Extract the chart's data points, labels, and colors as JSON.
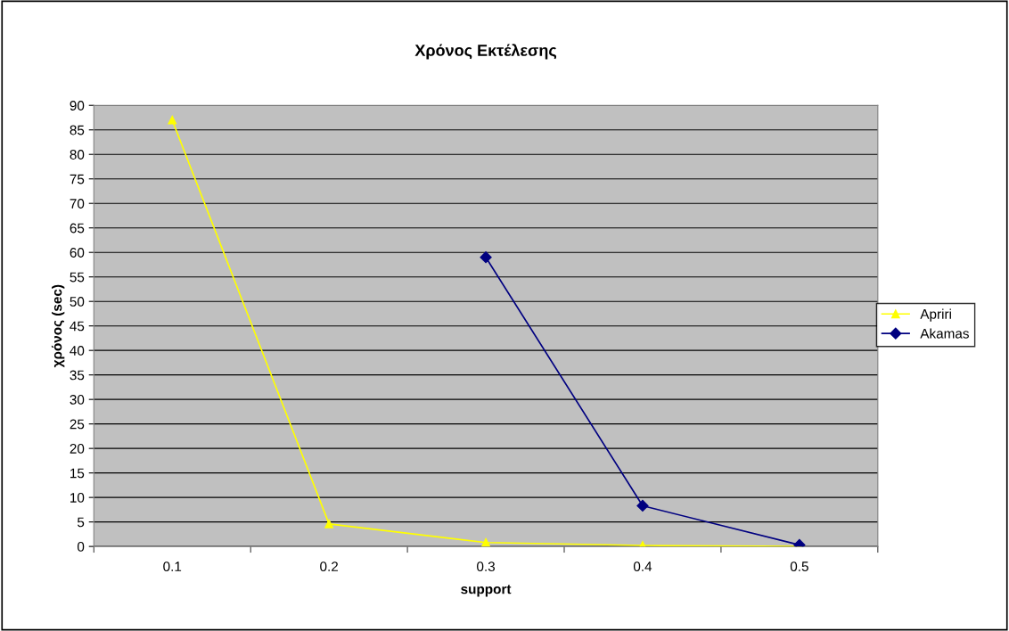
{
  "chart_data": {
    "type": "line",
    "title": "Χρόνος Εκτέλεσης",
    "xlabel": "support",
    "ylabel": "χρόνος (sec)",
    "categories": [
      "0.1",
      "0.2",
      "0.3",
      "0.4",
      "0.5"
    ],
    "series": [
      {
        "name": "Apriri",
        "color": "#ffff00",
        "marker": "triangle",
        "values": [
          87,
          4.6,
          0.8,
          0.2,
          0
        ]
      },
      {
        "name": "Akamas",
        "color": "#000080",
        "marker": "diamond",
        "values": [
          null,
          null,
          59,
          8.3,
          0.3
        ]
      }
    ],
    "ylim": [
      0,
      90
    ],
    "yticks": [
      0,
      5,
      10,
      15,
      20,
      25,
      30,
      35,
      40,
      45,
      50,
      55,
      60,
      65,
      70,
      75,
      80,
      85,
      90
    ],
    "grid": "y",
    "legend": "right",
    "line_style": "solid"
  }
}
